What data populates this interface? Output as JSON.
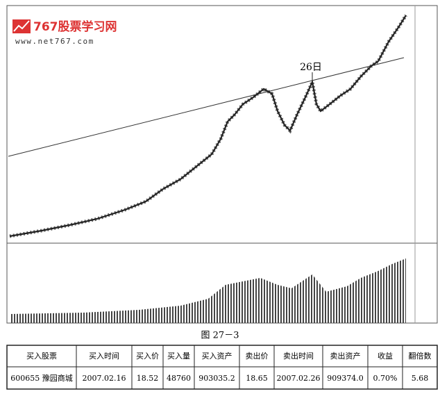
{
  "header": {
    "site_name": "767股票学习网",
    "site_url": "www.net767.com"
  },
  "figure": {
    "annotation": "26日",
    "caption": "图 27－3"
  },
  "table": {
    "columns": [
      "买入股票",
      "买入时间",
      "买入价",
      "买入量",
      "买入资产",
      "卖出价",
      "卖出时间",
      "卖出资产",
      "收益",
      "翻倍数"
    ],
    "rows": [
      [
        "600655 豫园商城",
        "2007.02.16",
        "18.52",
        "48760",
        "903035.2",
        "18.65",
        "2007.02.26",
        "909374.0",
        "0.70%",
        "5.68"
      ]
    ]
  }
}
